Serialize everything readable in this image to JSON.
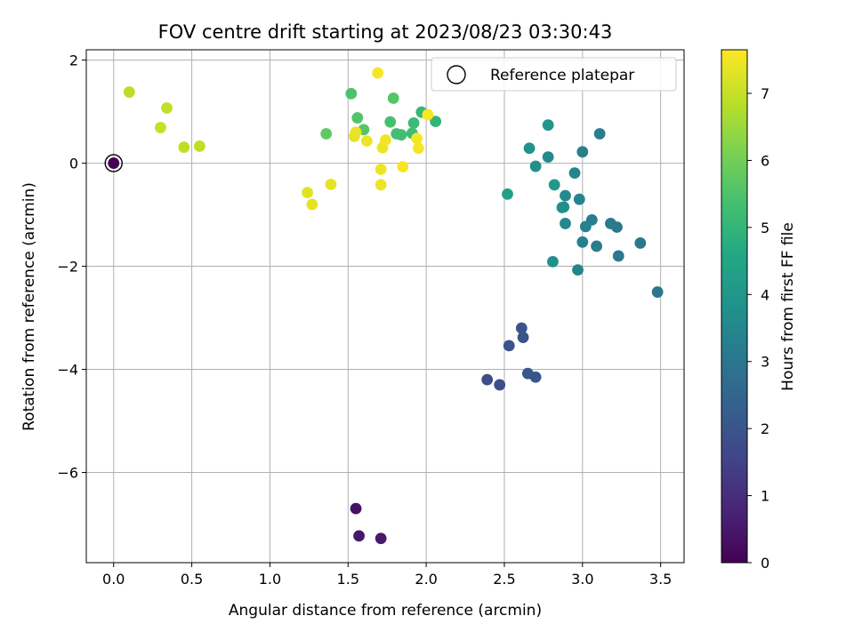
{
  "chart_data": {
    "type": "scatter",
    "title": "FOV centre drift starting at 2023/08/23 03:30:43",
    "xlabel": "Angular distance from reference (arcmin)",
    "ylabel": "Rotation from reference (arcmin)",
    "xlim": [
      -0.175,
      3.65
    ],
    "ylim": [
      -7.75,
      2.2
    ],
    "xticks": [
      0.0,
      0.5,
      1.0,
      1.5,
      2.0,
      2.5,
      3.0,
      3.5
    ],
    "xtick_labels": [
      "0.0",
      "0.5",
      "1.0",
      "1.5",
      "2.0",
      "2.5",
      "3.0",
      "3.5"
    ],
    "yticks": [
      2,
      0,
      -2,
      -4,
      -6
    ],
    "ytick_labels": [
      "2",
      "0",
      "−2",
      "−4",
      "−6"
    ],
    "grid": true,
    "legend": {
      "placement": "top-right",
      "entries": [
        "Reference platepar"
      ]
    },
    "colorbar": {
      "label": "Hours from first FF file",
      "range": [
        0,
        7.65
      ],
      "ticks": [
        0,
        1,
        2,
        3,
        4,
        5,
        6,
        7
      ],
      "tick_labels": [
        "0",
        "1",
        "2",
        "3",
        "4",
        "5",
        "6",
        "7"
      ],
      "colormap": "viridis"
    },
    "reference_point": {
      "x": 0.0,
      "y": 0.0
    },
    "points": [
      {
        "x": 0.0,
        "y": 0.0,
        "c": 0.0
      },
      {
        "x": 1.55,
        "y": -6.7,
        "c": 0.4
      },
      {
        "x": 1.57,
        "y": -7.23,
        "c": 0.5
      },
      {
        "x": 1.71,
        "y": -7.28,
        "c": 0.55
      },
      {
        "x": 2.39,
        "y": -4.2,
        "c": 1.8
      },
      {
        "x": 2.47,
        "y": -4.3,
        "c": 1.85
      },
      {
        "x": 2.53,
        "y": -3.54,
        "c": 1.95
      },
      {
        "x": 2.61,
        "y": -3.2,
        "c": 2.0
      },
      {
        "x": 2.62,
        "y": -3.38,
        "c": 2.0
      },
      {
        "x": 2.65,
        "y": -4.08,
        "c": 2.05
      },
      {
        "x": 2.7,
        "y": -4.15,
        "c": 2.05
      },
      {
        "x": 3.48,
        "y": -2.5,
        "c": 3.0
      },
      {
        "x": 3.37,
        "y": -1.55,
        "c": 3.05
      },
      {
        "x": 3.23,
        "y": -1.8,
        "c": 3.1
      },
      {
        "x": 3.22,
        "y": -1.24,
        "c": 3.1
      },
      {
        "x": 3.18,
        "y": -1.17,
        "c": 3.15
      },
      {
        "x": 3.11,
        "y": 0.57,
        "c": 3.2
      },
      {
        "x": 3.09,
        "y": -1.61,
        "c": 3.2
      },
      {
        "x": 3.06,
        "y": -1.1,
        "c": 3.25
      },
      {
        "x": 3.02,
        "y": -1.23,
        "c": 3.3
      },
      {
        "x": 3.0,
        "y": -1.53,
        "c": 3.3
      },
      {
        "x": 3.0,
        "y": 0.22,
        "c": 3.35
      },
      {
        "x": 2.98,
        "y": -0.7,
        "c": 3.4
      },
      {
        "x": 2.97,
        "y": -2.07,
        "c": 3.45
      },
      {
        "x": 2.95,
        "y": -0.19,
        "c": 3.45
      },
      {
        "x": 2.89,
        "y": -1.17,
        "c": 3.55
      },
      {
        "x": 2.89,
        "y": -0.63,
        "c": 3.6
      },
      {
        "x": 2.87,
        "y": -0.86,
        "c": 3.7
      },
      {
        "x": 2.88,
        "y": -0.85,
        "c": 3.75
      },
      {
        "x": 2.81,
        "y": -1.91,
        "c": 3.8
      },
      {
        "x": 2.82,
        "y": -0.42,
        "c": 4.1
      },
      {
        "x": 2.78,
        "y": 0.12,
        "c": 3.6
      },
      {
        "x": 2.78,
        "y": 0.74,
        "c": 4.0
      },
      {
        "x": 2.7,
        "y": -0.06,
        "c": 3.75
      },
      {
        "x": 2.66,
        "y": 0.29,
        "c": 3.9
      },
      {
        "x": 2.52,
        "y": -0.6,
        "c": 4.3
      },
      {
        "x": 2.06,
        "y": 0.81,
        "c": 5.0
      },
      {
        "x": 1.97,
        "y": 0.99,
        "c": 5.1
      },
      {
        "x": 1.92,
        "y": 0.78,
        "c": 5.2
      },
      {
        "x": 1.91,
        "y": 0.58,
        "c": 5.25
      },
      {
        "x": 1.84,
        "y": 0.55,
        "c": 5.3
      },
      {
        "x": 1.81,
        "y": 0.57,
        "c": 5.3
      },
      {
        "x": 1.77,
        "y": 0.8,
        "c": 5.4
      },
      {
        "x": 1.79,
        "y": 1.26,
        "c": 5.6
      },
      {
        "x": 1.6,
        "y": 0.65,
        "c": 5.6
      },
      {
        "x": 1.56,
        "y": 0.88,
        "c": 5.55
      },
      {
        "x": 1.52,
        "y": 1.35,
        "c": 5.5
      },
      {
        "x": 1.36,
        "y": 0.57,
        "c": 5.75
      },
      {
        "x": 0.1,
        "y": 1.38,
        "c": 6.85
      },
      {
        "x": 0.34,
        "y": 1.07,
        "c": 6.95
      },
      {
        "x": 0.3,
        "y": 0.69,
        "c": 7.0
      },
      {
        "x": 0.45,
        "y": 0.31,
        "c": 6.9
      },
      {
        "x": 0.55,
        "y": 0.33,
        "c": 6.9
      },
      {
        "x": 1.24,
        "y": -0.57,
        "c": 7.3
      },
      {
        "x": 1.27,
        "y": -0.8,
        "c": 7.35
      },
      {
        "x": 1.39,
        "y": -0.41,
        "c": 7.35
      },
      {
        "x": 1.54,
        "y": 0.52,
        "c": 7.35
      },
      {
        "x": 1.55,
        "y": 0.6,
        "c": 7.4
      },
      {
        "x": 1.62,
        "y": 0.43,
        "c": 7.45
      },
      {
        "x": 1.69,
        "y": 1.75,
        "c": 7.55
      },
      {
        "x": 1.71,
        "y": -0.12,
        "c": 7.45
      },
      {
        "x": 1.71,
        "y": -0.42,
        "c": 7.45
      },
      {
        "x": 1.72,
        "y": 0.3,
        "c": 7.45
      },
      {
        "x": 1.74,
        "y": 0.45,
        "c": 7.5
      },
      {
        "x": 1.85,
        "y": -0.07,
        "c": 7.55
      },
      {
        "x": 1.94,
        "y": 0.48,
        "c": 7.55
      },
      {
        "x": 1.95,
        "y": 0.29,
        "c": 7.55
      },
      {
        "x": 2.01,
        "y": 0.94,
        "c": 7.6
      }
    ]
  }
}
